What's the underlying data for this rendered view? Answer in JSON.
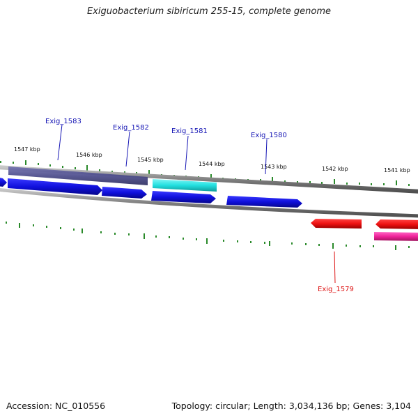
{
  "title": "Exiguobacterium sibiricum 255-15, complete genome",
  "footer": {
    "accession": "Accession: NC_010556",
    "summary": "Topology: circular; Length: 3,034,136 bp; Genes: 3,104"
  },
  "ruler_labels": [
    "1547 kbp",
    "1546 kbp",
    "1545 kbp",
    "1544 kbp",
    "1543 kbp",
    "1542 kbp",
    "1541 kbp"
  ],
  "gene_labels": {
    "g1583": "Exig_1583",
    "g1582": "Exig_1582",
    "g1581": "Exig_1581",
    "g1580": "Exig_1580",
    "g1579": "Exig_1579"
  },
  "colors": {
    "forward_cds": "#1010dd",
    "reverse_cds": "#ee1111",
    "highlight_cyan": "#22e0e0",
    "highlight_magenta": "#ee2299",
    "overlay_slate": "#4a4a8a",
    "backbone": "#8a8a8a",
    "ticks": "#2a8a2a",
    "label_forward": "#1414b4",
    "label_reverse": "#dd1111"
  }
}
